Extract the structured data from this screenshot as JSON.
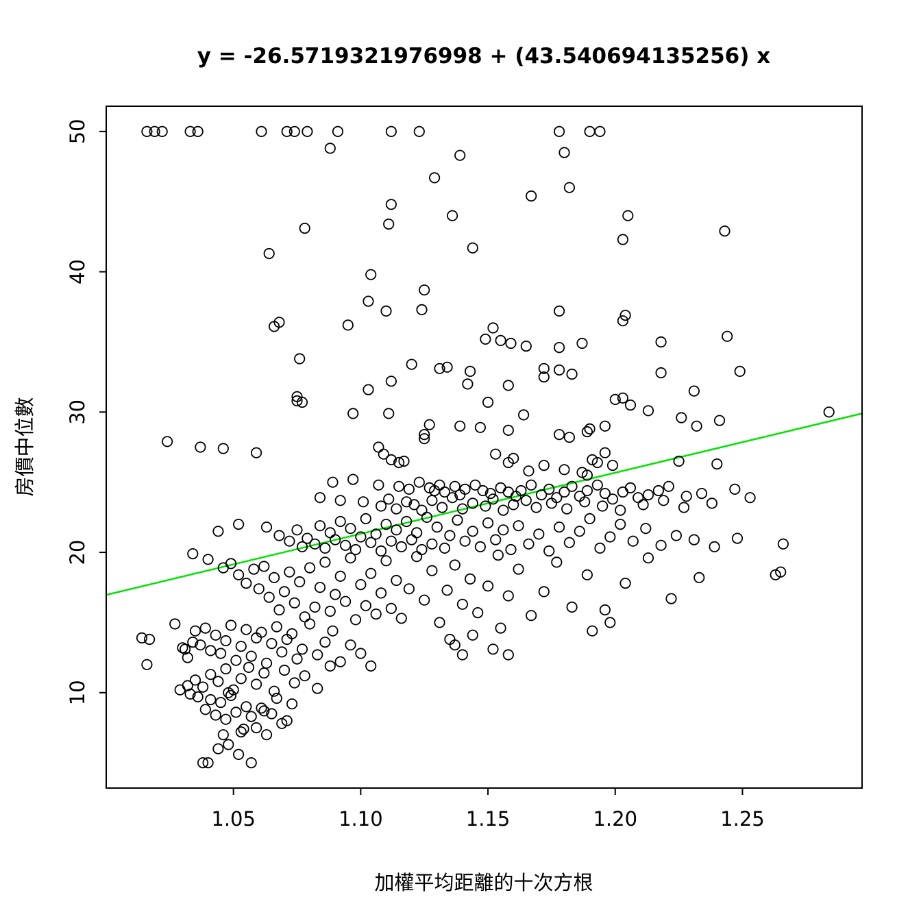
{
  "chart_data": {
    "type": "scatter",
    "title": "y = -26.5719321976998 + (43.540694135256) x",
    "xlabel": "加權平均距離的十次方根",
    "ylabel": "房價中位數",
    "xlim": [
      1.0,
      1.297
    ],
    "ylim": [
      3.2,
      51.8
    ],
    "x_ticks": [
      1.05,
      1.1,
      1.15,
      1.2,
      1.25
    ],
    "y_ticks": [
      10,
      20,
      30,
      40,
      50
    ],
    "grid": false,
    "legend": "none",
    "point_style": {
      "marker": "circle-open",
      "color": "#000000"
    },
    "regression": {
      "intercept": -26.5719321976998,
      "slope": 43.540694135256,
      "color": "#00E400"
    },
    "points": [
      [
        1.016,
        50
      ],
      [
        1.019,
        50
      ],
      [
        1.022,
        50
      ],
      [
        1.033,
        50
      ],
      [
        1.036,
        50
      ],
      [
        1.061,
        50
      ],
      [
        1.071,
        50
      ],
      [
        1.074,
        50
      ],
      [
        1.079,
        50
      ],
      [
        1.091,
        50
      ],
      [
        1.112,
        50
      ],
      [
        1.123,
        50
      ],
      [
        1.178,
        50
      ],
      [
        1.19,
        50
      ],
      [
        1.194,
        50
      ],
      [
        1.088,
        48.8
      ],
      [
        1.139,
        48.3
      ],
      [
        1.18,
        48.5
      ],
      [
        1.129,
        46.7
      ],
      [
        1.182,
        46.0
      ],
      [
        1.167,
        45.4
      ],
      [
        1.112,
        44.8
      ],
      [
        1.136,
        44.0
      ],
      [
        1.205,
        44.0
      ],
      [
        1.111,
        43.4
      ],
      [
        1.078,
        43.1
      ],
      [
        1.243,
        42.9
      ],
      [
        1.203,
        42.3
      ],
      [
        1.144,
        41.7
      ],
      [
        1.064,
        41.3
      ],
      [
        1.104,
        39.8
      ],
      [
        1.125,
        38.7
      ],
      [
        1.103,
        37.9
      ],
      [
        1.11,
        37.2
      ],
      [
        1.124,
        37.3
      ],
      [
        1.178,
        37.2
      ],
      [
        1.095,
        36.2
      ],
      [
        1.068,
        36.4
      ],
      [
        1.066,
        36.1
      ],
      [
        1.152,
        36.0
      ],
      [
        1.204,
        36.9
      ],
      [
        1.203,
        36.5
      ],
      [
        1.149,
        35.2
      ],
      [
        1.155,
        35.1
      ],
      [
        1.159,
        34.9
      ],
      [
        1.218,
        35.0
      ],
      [
        1.244,
        35.4
      ],
      [
        1.165,
        34.7
      ],
      [
        1.178,
        34.6
      ],
      [
        1.187,
        34.9
      ],
      [
        1.076,
        33.8
      ],
      [
        1.12,
        33.4
      ],
      [
        1.134,
        33.2
      ],
      [
        1.131,
        33.1
      ],
      [
        1.172,
        33.1
      ],
      [
        1.143,
        32.9
      ],
      [
        1.218,
        32.8
      ],
      [
        1.249,
        32.9
      ],
      [
        1.112,
        32.2
      ],
      [
        1.142,
        32.0
      ],
      [
        1.158,
        31.9
      ],
      [
        1.172,
        32.5
      ],
      [
        1.178,
        33.0
      ],
      [
        1.183,
        32.7
      ],
      [
        1.103,
        31.6
      ],
      [
        1.075,
        31.1
      ],
      [
        1.075,
        30.8
      ],
      [
        1.077,
        30.7
      ],
      [
        1.15,
        30.7
      ],
      [
        1.203,
        31.0
      ],
      [
        1.2,
        30.9
      ],
      [
        1.206,
        30.5
      ],
      [
        1.231,
        31.5
      ],
      [
        1.213,
        30.1
      ],
      [
        1.284,
        30.0
      ],
      [
        1.097,
        29.9
      ],
      [
        1.111,
        29.9
      ],
      [
        1.164,
        29.8
      ],
      [
        1.226,
        29.6
      ],
      [
        1.232,
        29.0
      ],
      [
        1.127,
        29.1
      ],
      [
        1.139,
        29.0
      ],
      [
        1.147,
        28.9
      ],
      [
        1.158,
        28.7
      ],
      [
        1.125,
        28.4
      ],
      [
        1.178,
        28.4
      ],
      [
        1.182,
        28.2
      ],
      [
        1.189,
        28.6
      ],
      [
        1.19,
        28.8
      ],
      [
        1.196,
        29.0
      ],
      [
        1.241,
        29.4
      ],
      [
        1.024,
        27.9
      ],
      [
        1.037,
        27.5
      ],
      [
        1.046,
        27.4
      ],
      [
        1.059,
        27.1
      ],
      [
        1.107,
        27.5
      ],
      [
        1.109,
        27.0
      ],
      [
        1.112,
        26.6
      ],
      [
        1.115,
        26.4
      ],
      [
        1.117,
        26.5
      ],
      [
        1.153,
        27.0
      ],
      [
        1.16,
        26.7
      ],
      [
        1.158,
        26.4
      ],
      [
        1.172,
        26.2
      ],
      [
        1.191,
        26.6
      ],
      [
        1.193,
        26.4
      ],
      [
        1.196,
        27.1
      ],
      [
        1.199,
        26.2
      ],
      [
        1.225,
        26.5
      ],
      [
        1.24,
        26.3
      ],
      [
        1.166,
        25.8
      ],
      [
        1.18,
        25.9
      ],
      [
        1.187,
        25.7
      ],
      [
        1.189,
        25.5
      ],
      [
        1.125,
        28.1
      ],
      [
        1.089,
        25.0
      ],
      [
        1.097,
        25.2
      ],
      [
        1.107,
        24.8
      ],
      [
        1.115,
        24.7
      ],
      [
        1.119,
        24.5
      ],
      [
        1.123,
        25.0
      ],
      [
        1.127,
        24.6
      ],
      [
        1.129,
        24.4
      ],
      [
        1.131,
        24.8
      ],
      [
        1.133,
        24.3
      ],
      [
        1.137,
        24.7
      ],
      [
        1.139,
        24.1
      ],
      [
        1.141,
        24.5
      ],
      [
        1.145,
        24.8
      ],
      [
        1.148,
        24.4
      ],
      [
        1.151,
        24.2
      ],
      [
        1.155,
        24.6
      ],
      [
        1.158,
        24.3
      ],
      [
        1.161,
        24.0
      ],
      [
        1.163,
        24.4
      ],
      [
        1.167,
        24.8
      ],
      [
        1.171,
        24.1
      ],
      [
        1.174,
        24.5
      ],
      [
        1.177,
        23.9
      ],
      [
        1.18,
        24.3
      ],
      [
        1.183,
        24.7
      ],
      [
        1.186,
        24.0
      ],
      [
        1.189,
        24.4
      ],
      [
        1.193,
        24.8
      ],
      [
        1.196,
        24.2
      ],
      [
        1.199,
        23.8
      ],
      [
        1.203,
        24.3
      ],
      [
        1.206,
        24.6
      ],
      [
        1.209,
        23.9
      ],
      [
        1.213,
        24.1
      ],
      [
        1.217,
        24.4
      ],
      [
        1.221,
        24.7
      ],
      [
        1.228,
        24.0
      ],
      [
        1.234,
        24.2
      ],
      [
        1.247,
        24.5
      ],
      [
        1.084,
        23.9
      ],
      [
        1.092,
        23.7
      ],
      [
        1.101,
        23.6
      ],
      [
        1.108,
        23.3
      ],
      [
        1.111,
        23.8
      ],
      [
        1.114,
        23.1
      ],
      [
        1.118,
        23.6
      ],
      [
        1.121,
        23.4
      ],
      [
        1.124,
        23.0
      ],
      [
        1.128,
        23.7
      ],
      [
        1.132,
        23.2
      ],
      [
        1.136,
        23.9
      ],
      [
        1.14,
        23.1
      ],
      [
        1.144,
        23.5
      ],
      [
        1.149,
        23.3
      ],
      [
        1.152,
        23.8
      ],
      [
        1.156,
        23.0
      ],
      [
        1.16,
        23.4
      ],
      [
        1.165,
        23.7
      ],
      [
        1.169,
        23.2
      ],
      [
        1.175,
        23.5
      ],
      [
        1.181,
        23.1
      ],
      [
        1.188,
        23.6
      ],
      [
        1.195,
        23.3
      ],
      [
        1.202,
        23.0
      ],
      [
        1.211,
        23.4
      ],
      [
        1.219,
        23.7
      ],
      [
        1.227,
        23.2
      ],
      [
        1.238,
        23.5
      ],
      [
        1.253,
        23.9
      ],
      [
        1.044,
        21.5
      ],
      [
        1.052,
        22.0
      ],
      [
        1.063,
        21.8
      ],
      [
        1.068,
        21.2
      ],
      [
        1.072,
        20.8
      ],
      [
        1.075,
        21.6
      ],
      [
        1.077,
        20.4
      ],
      [
        1.079,
        21.0
      ],
      [
        1.082,
        20.6
      ],
      [
        1.084,
        21.9
      ],
      [
        1.086,
        20.3
      ],
      [
        1.088,
        21.4
      ],
      [
        1.09,
        20.9
      ],
      [
        1.092,
        22.2
      ],
      [
        1.094,
        20.5
      ],
      [
        1.096,
        21.7
      ],
      [
        1.098,
        20.2
      ],
      [
        1.1,
        21.1
      ],
      [
        1.102,
        22.4
      ],
      [
        1.104,
        20.7
      ],
      [
        1.106,
        21.3
      ],
      [
        1.108,
        20.1
      ],
      [
        1.11,
        22.0
      ],
      [
        1.112,
        20.8
      ],
      [
        1.114,
        21.6
      ],
      [
        1.116,
        20.4
      ],
      [
        1.118,
        22.2
      ],
      [
        1.12,
        20.9
      ],
      [
        1.122,
        21.4
      ],
      [
        1.124,
        20.2
      ],
      [
        1.126,
        22.5
      ],
      [
        1.128,
        20.6
      ],
      [
        1.13,
        21.8
      ],
      [
        1.133,
        20.3
      ],
      [
        1.135,
        21.2
      ],
      [
        1.138,
        22.3
      ],
      [
        1.141,
        20.8
      ],
      [
        1.144,
        21.5
      ],
      [
        1.147,
        20.4
      ],
      [
        1.15,
        22.1
      ],
      [
        1.153,
        20.9
      ],
      [
        1.156,
        21.6
      ],
      [
        1.159,
        20.2
      ],
      [
        1.162,
        21.9
      ],
      [
        1.166,
        20.6
      ],
      [
        1.17,
        21.3
      ],
      [
        1.174,
        20.1
      ],
      [
        1.178,
        21.8
      ],
      [
        1.182,
        20.7
      ],
      [
        1.186,
        21.5
      ],
      [
        1.19,
        22.4
      ],
      [
        1.194,
        20.3
      ],
      [
        1.198,
        21.1
      ],
      [
        1.202,
        22.0
      ],
      [
        1.207,
        20.8
      ],
      [
        1.212,
        21.7
      ],
      [
        1.218,
        20.5
      ],
      [
        1.224,
        21.2
      ],
      [
        1.231,
        20.9
      ],
      [
        1.239,
        20.4
      ],
      [
        1.248,
        21.0
      ],
      [
        1.266,
        20.6
      ],
      [
        1.034,
        19.9
      ],
      [
        1.04,
        19.5
      ],
      [
        1.046,
        18.9
      ],
      [
        1.049,
        19.2
      ],
      [
        1.052,
        18.4
      ],
      [
        1.055,
        17.8
      ],
      [
        1.058,
        18.8
      ],
      [
        1.06,
        17.4
      ],
      [
        1.062,
        19.0
      ],
      [
        1.064,
        16.8
      ],
      [
        1.066,
        18.2
      ],
      [
        1.068,
        15.9
      ],
      [
        1.07,
        17.2
      ],
      [
        1.072,
        18.6
      ],
      [
        1.074,
        16.4
      ],
      [
        1.076,
        17.9
      ],
      [
        1.078,
        15.4
      ],
      [
        1.08,
        18.9
      ],
      [
        1.082,
        16.1
      ],
      [
        1.084,
        17.5
      ],
      [
        1.086,
        19.3
      ],
      [
        1.088,
        15.8
      ],
      [
        1.09,
        17.0
      ],
      [
        1.092,
        18.3
      ],
      [
        1.094,
        16.5
      ],
      [
        1.096,
        19.6
      ],
      [
        1.098,
        15.2
      ],
      [
        1.1,
        17.7
      ],
      [
        1.102,
        16.2
      ],
      [
        1.104,
        18.5
      ],
      [
        1.106,
        15.6
      ],
      [
        1.108,
        17.1
      ],
      [
        1.11,
        19.4
      ],
      [
        1.112,
        16.0
      ],
      [
        1.114,
        18.0
      ],
      [
        1.116,
        15.3
      ],
      [
        1.119,
        17.4
      ],
      [
        1.122,
        19.7
      ],
      [
        1.125,
        16.6
      ],
      [
        1.128,
        18.7
      ],
      [
        1.131,
        15.0
      ],
      [
        1.134,
        17.3
      ],
      [
        1.137,
        19.1
      ],
      [
        1.14,
        16.3
      ],
      [
        1.143,
        18.1
      ],
      [
        1.146,
        15.7
      ],
      [
        1.15,
        17.6
      ],
      [
        1.154,
        19.8
      ],
      [
        1.158,
        16.9
      ],
      [
        1.162,
        18.8
      ],
      [
        1.167,
        15.5
      ],
      [
        1.172,
        17.2
      ],
      [
        1.177,
        19.3
      ],
      [
        1.183,
        16.1
      ],
      [
        1.189,
        18.4
      ],
      [
        1.196,
        15.9
      ],
      [
        1.204,
        17.8
      ],
      [
        1.213,
        19.6
      ],
      [
        1.222,
        16.7
      ],
      [
        1.233,
        18.2
      ],
      [
        1.263,
        18.4
      ],
      [
        1.265,
        18.6
      ],
      [
        1.014,
        13.9
      ],
      [
        1.017,
        13.8
      ],
      [
        1.016,
        12.0
      ],
      [
        1.027,
        14.9
      ],
      [
        1.03,
        13.2
      ],
      [
        1.031,
        13.1
      ],
      [
        1.032,
        12.5
      ],
      [
        1.034,
        13.6
      ],
      [
        1.035,
        14.4
      ],
      [
        1.037,
        13.4
      ],
      [
        1.039,
        14.6
      ],
      [
        1.041,
        13.0
      ],
      [
        1.043,
        14.1
      ],
      [
        1.045,
        12.8
      ],
      [
        1.047,
        13.7
      ],
      [
        1.049,
        14.8
      ],
      [
        1.051,
        12.3
      ],
      [
        1.053,
        13.3
      ],
      [
        1.055,
        14.5
      ],
      [
        1.057,
        12.6
      ],
      [
        1.059,
        13.9
      ],
      [
        1.061,
        14.3
      ],
      [
        1.063,
        12.1
      ],
      [
        1.065,
        13.5
      ],
      [
        1.067,
        14.7
      ],
      [
        1.069,
        12.9
      ],
      [
        1.071,
        13.8
      ],
      [
        1.073,
        14.2
      ],
      [
        1.075,
        12.4
      ],
      [
        1.077,
        13.1
      ],
      [
        1.08,
        14.9
      ],
      [
        1.083,
        12.7
      ],
      [
        1.086,
        13.6
      ],
      [
        1.089,
        14.4
      ],
      [
        1.092,
        12.2
      ],
      [
        1.096,
        13.4
      ],
      [
        1.1,
        12.8
      ],
      [
        1.104,
        11.9
      ],
      [
        1.135,
        13.8
      ],
      [
        1.137,
        13.4
      ],
      [
        1.14,
        12.7
      ],
      [
        1.144,
        14.1
      ],
      [
        1.152,
        13.1
      ],
      [
        1.155,
        14.6
      ],
      [
        1.158,
        12.7
      ],
      [
        1.191,
        14.4
      ],
      [
        1.198,
        15.0
      ],
      [
        1.029,
        10.2
      ],
      [
        1.032,
        10.5
      ],
      [
        1.035,
        10.9
      ],
      [
        1.038,
        10.4
      ],
      [
        1.041,
        11.3
      ],
      [
        1.044,
        10.8
      ],
      [
        1.047,
        11.7
      ],
      [
        1.05,
        10.2
      ],
      [
        1.053,
        11.0
      ],
      [
        1.056,
        11.8
      ],
      [
        1.059,
        10.6
      ],
      [
        1.062,
        11.4
      ],
      [
        1.066,
        10.1
      ],
      [
        1.07,
        11.6
      ],
      [
        1.074,
        10.7
      ],
      [
        1.078,
        11.2
      ],
      [
        1.083,
        10.3
      ],
      [
        1.088,
        11.9
      ],
      [
        1.036,
        9.7
      ],
      [
        1.039,
        8.8
      ],
      [
        1.041,
        9.5
      ],
      [
        1.043,
        8.4
      ],
      [
        1.045,
        9.3
      ],
      [
        1.047,
        8.1
      ],
      [
        1.049,
        9.8
      ],
      [
        1.051,
        8.6
      ],
      [
        1.053,
        7.2
      ],
      [
        1.055,
        9.0
      ],
      [
        1.057,
        8.3
      ],
      [
        1.059,
        7.5
      ],
      [
        1.061,
        8.9
      ],
      [
        1.063,
        7.0
      ],
      [
        1.065,
        8.5
      ],
      [
        1.067,
        9.6
      ],
      [
        1.069,
        7.8
      ],
      [
        1.071,
        8.0
      ],
      [
        1.073,
        9.2
      ],
      [
        1.046,
        7.0
      ],
      [
        1.048,
        6.3
      ],
      [
        1.052,
        5.6
      ],
      [
        1.038,
        5.0
      ],
      [
        1.04,
        5.0
      ],
      [
        1.044,
        6.0
      ],
      [
        1.057,
        5.0
      ],
      [
        1.054,
        7.4
      ],
      [
        1.062,
        8.7
      ],
      [
        1.033,
        9.9
      ],
      [
        1.048,
        10.0
      ]
    ]
  }
}
